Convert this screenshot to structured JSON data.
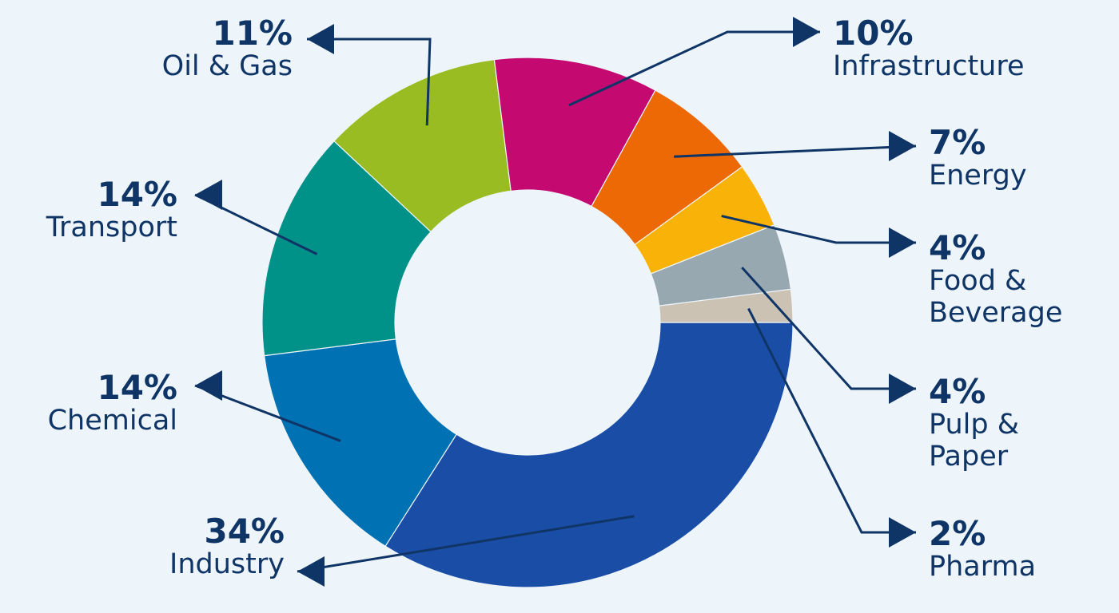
{
  "chart_data": {
    "type": "pie",
    "variant": "donut",
    "unit": "%",
    "slices": [
      {
        "label": "Industry",
        "value": 34,
        "value_label": "34%",
        "color": "#1a4ea6"
      },
      {
        "label": "Chemical",
        "value": 14,
        "value_label": "14%",
        "color": "#0071b2"
      },
      {
        "label": "Transport",
        "value": 14,
        "value_label": "14%",
        "color": "#009189"
      },
      {
        "label": "Oil & Gas",
        "value": 11,
        "value_label": "11%",
        "color": "#98bc22"
      },
      {
        "label": "Infrastructure",
        "value": 10,
        "value_label": "10%",
        "color": "#c40a70"
      },
      {
        "label": "Energy",
        "value": 7,
        "value_label": "7%",
        "color": "#ec6905"
      },
      {
        "label": "Food & Beverage",
        "value": 4,
        "value_label": "4%",
        "color": "#f9b208"
      },
      {
        "label": "Pulp & Paper",
        "value": 4,
        "value_label": "4%",
        "color": "#98a8b0"
      },
      {
        "label": "Pharma",
        "value": 2,
        "value_label": "2%",
        "color": "#cbc2b4"
      }
    ]
  }
}
